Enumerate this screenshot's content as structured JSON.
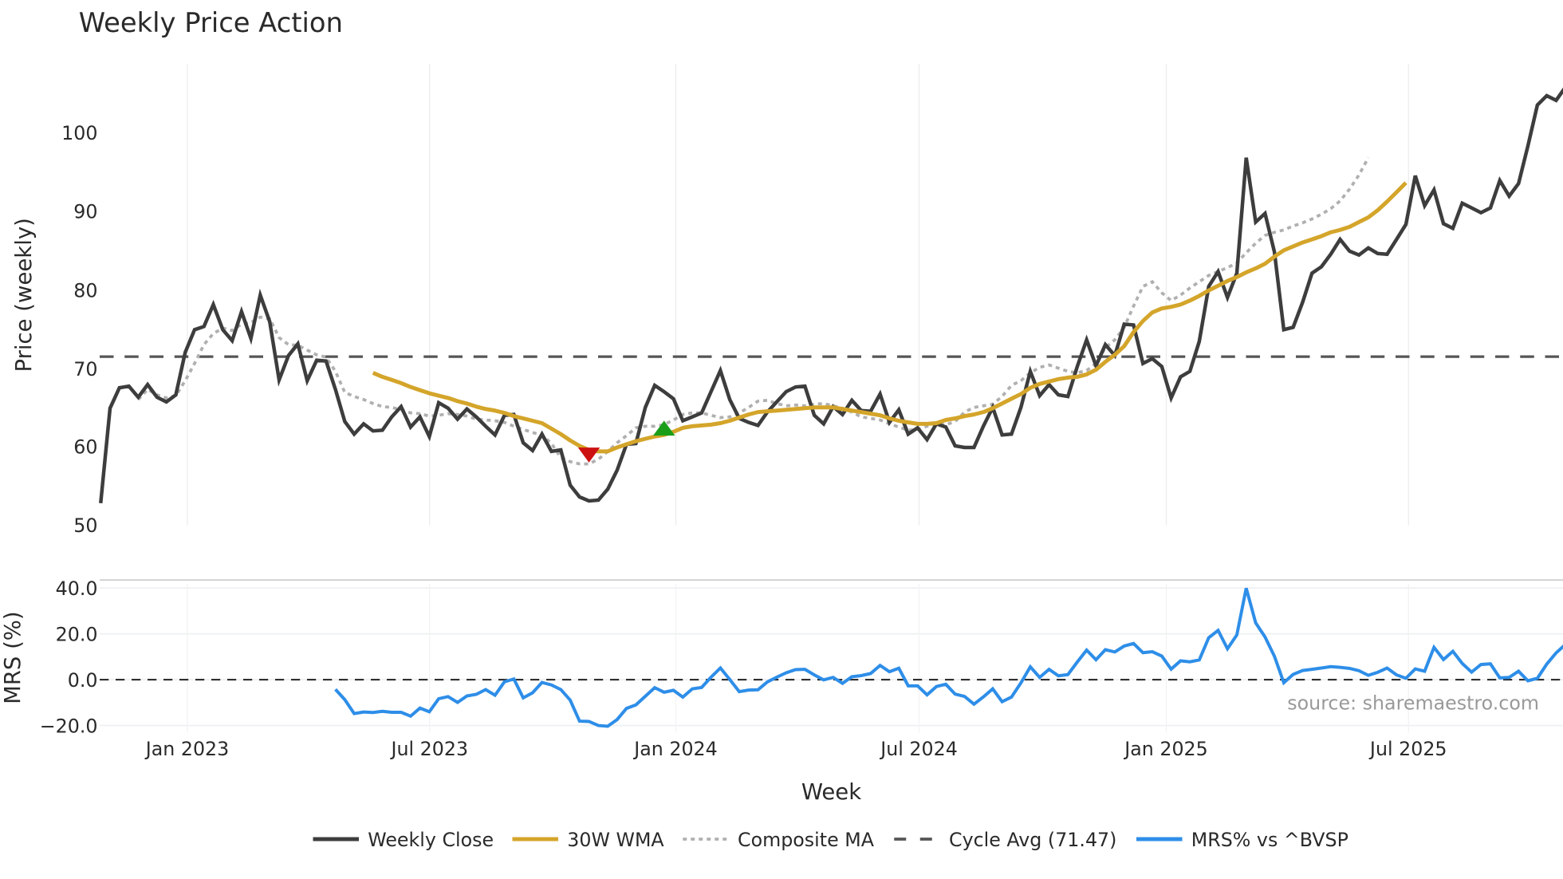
{
  "chart_data": [
    {
      "type": "line",
      "title": "Weekly Price Action",
      "xlabel": "Week",
      "ylabel": "Price (weekly)",
      "ylim": [
        50,
        108
      ],
      "yticks": [
        50,
        60,
        70,
        80,
        90,
        100
      ],
      "xticks": [
        "Jan 2023",
        "Jul 2023",
        "Jan 2024",
        "Jul 2024",
        "Jan 2025",
        "Jul 2025"
      ],
      "grid": true,
      "legend_position": "bottom",
      "x_start": "Nov 2022",
      "x_end": "Nov 2025",
      "series": [
        {
          "name": "Weekly Close",
          "color": "#3d3d3d",
          "style": "solid",
          "values": [
            52.8,
            64.9,
            67.5,
            67.7,
            66.3,
            67.9,
            66.3,
            65.7,
            66.6,
            72.0,
            74.9,
            75.3,
            78.1,
            74.9,
            73.5,
            77.2,
            73.8,
            79.3,
            75.9,
            68.5,
            71.6,
            73.1,
            68.4,
            71.0,
            70.9,
            67.3,
            63.2,
            61.6,
            62.9,
            62.0,
            62.1,
            63.8,
            65.1,
            62.5,
            63.8,
            61.3,
            65.6,
            64.9,
            63.5,
            64.8,
            63.8,
            62.6,
            61.5,
            64.0,
            64.1,
            60.5,
            59.5,
            61.6,
            59.4,
            59.6,
            55.1,
            53.6,
            53.1,
            53.2,
            54.6,
            57.0,
            60.3,
            60.4,
            65.0,
            67.8,
            67.0,
            66.1,
            63.3,
            63.8,
            64.3,
            67.0,
            69.7,
            66.0,
            63.6,
            63.1,
            62.7,
            64.4,
            65.7,
            67.0,
            67.6,
            67.7,
            64.0,
            62.9,
            65.1,
            64.1,
            65.9,
            64.6,
            64.5,
            66.7,
            63.1,
            64.7,
            61.6,
            62.4,
            60.9,
            62.9,
            62.5,
            60.1,
            59.9,
            59.9,
            62.6,
            65.0,
            61.5,
            61.6,
            65.0,
            69.6,
            66.5,
            67.9,
            66.6,
            66.4,
            70.2,
            73.6,
            70.3,
            73.0,
            71.6,
            75.6,
            75.5,
            70.6,
            71.2,
            70.2,
            66.2,
            68.9,
            69.6,
            73.4,
            80.4,
            82.3,
            79.0,
            82.1,
            96.8,
            88.6,
            89.7,
            84.8,
            74.9,
            75.2,
            78.4,
            82.1,
            82.9,
            84.5,
            86.4,
            84.9,
            84.4,
            85.3,
            84.6,
            84.5,
            86.4,
            88.3,
            94.5,
            90.7,
            92.7,
            88.4,
            87.8,
            91.0,
            90.4,
            89.8,
            90.4,
            93.9,
            91.9,
            93.5,
            98.3,
            103.5,
            104.7,
            104.1,
            105.8
          ]
        },
        {
          "name": "30W WMA",
          "color": "#d4a52a",
          "style": "solid",
          "start_index": 29,
          "values": [
            69.4,
            68.9,
            68.5,
            68.1,
            67.6,
            67.2,
            66.8,
            66.5,
            66.2,
            65.8,
            65.5,
            65.1,
            64.8,
            64.6,
            64.3,
            63.9,
            63.6,
            63.3,
            63.0,
            62.3,
            61.6,
            60.8,
            60.1,
            59.6,
            59.4,
            59.4,
            59.9,
            60.3,
            60.7,
            61.0,
            61.3,
            61.5,
            61.9,
            62.4,
            62.6,
            62.7,
            62.8,
            63.0,
            63.3,
            63.7,
            64.1,
            64.4,
            64.5,
            64.6,
            64.7,
            64.8,
            64.9,
            65.0,
            65.0,
            65.0,
            64.8,
            64.6,
            64.4,
            64.2,
            64.0,
            63.6,
            63.3,
            63.1,
            62.9,
            62.9,
            63.0,
            63.4,
            63.6,
            63.9,
            64.1,
            64.4,
            64.9,
            65.5,
            66.1,
            66.7,
            67.5,
            68.0,
            68.3,
            68.6,
            68.8,
            68.9,
            69.2,
            69.8,
            70.8,
            71.7,
            72.8,
            74.6,
            76.0,
            77.1,
            77.6,
            77.8,
            78.1,
            78.6,
            79.2,
            79.9,
            80.5,
            81.1,
            81.6,
            82.2,
            82.7,
            83.3,
            84.2,
            85.0,
            85.5,
            86.0,
            86.4,
            86.8,
            87.3,
            87.6,
            88.0,
            88.6,
            89.2,
            90.1,
            91.2,
            92.4,
            93.6
          ]
        },
        {
          "name": "Composite MA",
          "color": "#b0b0b0",
          "style": "dotted",
          "start_index": 4,
          "values": [
            66.0,
            67.3,
            66.6,
            66.2,
            66.5,
            68.4,
            70.6,
            73.0,
            74.4,
            75.1,
            74.8,
            75.6,
            75.8,
            76.5,
            76.3,
            73.9,
            73.0,
            72.9,
            72.3,
            71.7,
            71.4,
            69.6,
            66.9,
            66.4,
            66.0,
            65.5,
            65.1,
            65.0,
            64.7,
            64.3,
            64.2,
            63.9,
            64.0,
            64.2,
            64.1,
            63.9,
            63.5,
            63.4,
            63.3,
            63.1,
            62.6,
            62.2,
            61.8,
            61.5,
            60.4,
            58.6,
            58.1,
            57.8,
            57.8,
            58.4,
            59.4,
            60.5,
            61.4,
            62.4,
            62.6,
            62.6,
            62.8,
            63.4,
            64.1,
            64.3,
            64.3,
            64.0,
            63.7,
            63.8,
            64.3,
            65.0,
            65.8,
            65.9,
            65.5,
            65.2,
            65.3,
            65.2,
            65.4,
            65.5,
            65.2,
            64.9,
            64.4,
            63.8,
            63.6,
            63.4,
            62.9,
            62.5,
            62.1,
            62.2,
            62.6,
            62.9,
            62.8,
            63.2,
            64.4,
            65.0,
            65.2,
            65.4,
            66.4,
            67.8,
            68.4,
            69.4,
            70.1,
            70.4,
            70.0,
            69.6,
            69.4,
            69.7,
            70.6,
            72.6,
            73.6,
            75.2,
            77.9,
            80.4,
            81.0,
            79.6,
            78.6,
            79.3,
            80.2,
            81.0,
            81.8,
            82.3,
            82.8,
            83.4,
            84.7,
            85.9,
            86.9,
            87.3,
            87.6,
            88.1,
            88.5,
            89.0,
            89.6,
            90.3,
            91.3,
            92.8,
            94.6,
            96.8
          ]
        },
        {
          "name": "Cycle Avg (71.47)",
          "color": "#555555",
          "style": "dashed",
          "value": 71.47
        }
      ],
      "markers": [
        {
          "type": "sell",
          "shape": "triangle-down",
          "color": "#cc1111",
          "x_index": 52,
          "y": 59.0
        },
        {
          "type": "buy",
          "shape": "triangle-up",
          "color": "#1a9e1a",
          "x_index": 60,
          "y": 62.3
        }
      ]
    },
    {
      "type": "line",
      "title": "",
      "xlabel": "Week",
      "ylabel": "MRS (%)",
      "ylim": [
        -22,
        43
      ],
      "yticks": [
        -20.0,
        0.0,
        20.0,
        40.0
      ],
      "ytick_labels": [
        "−20.0",
        "0.0",
        "20.0",
        "40.0"
      ],
      "xticks": [
        "Jan 2023",
        "Jul 2023",
        "Jan 2024",
        "Jul 2024",
        "Jan 2025",
        "Jul 2025"
      ],
      "zero_line": {
        "style": "dashed",
        "color": "#222222"
      },
      "series": [
        {
          "name": "MRS% vs ^BVSP",
          "color": "#2e8ee8",
          "start_index": 25,
          "values": [
            -4.2,
            -8.7,
            -14.8,
            -14.1,
            -14.3,
            -13.8,
            -14.2,
            -14.2,
            -15.9,
            -12.4,
            -14.0,
            -8.3,
            -7.4,
            -9.9,
            -7.1,
            -6.4,
            -4.3,
            -6.8,
            -0.9,
            0.3,
            -7.9,
            -5.7,
            -1.2,
            -2.3,
            -4.3,
            -8.9,
            -18.1,
            -18.2,
            -20.0,
            -20.3,
            -17.4,
            -12.5,
            -11.0,
            -7.2,
            -3.5,
            -5.5,
            -4.6,
            -7.6,
            -4.0,
            -3.4,
            1.1,
            5.1,
            0.1,
            -5.2,
            -4.5,
            -4.4,
            -1.0,
            1.1,
            3.0,
            4.4,
            4.5,
            2.1,
            -0.1,
            1.0,
            -1.6,
            1.3,
            1.8,
            2.7,
            6.2,
            3.5,
            5.0,
            -2.7,
            -2.7,
            -6.6,
            -3.0,
            -2.0,
            -6.3,
            -7.3,
            -10.7,
            -7.5,
            -4.0,
            -9.6,
            -7.6,
            -1.4,
            5.6,
            1.0,
            4.5,
            1.7,
            2.2,
            7.7,
            12.9,
            8.7,
            13.1,
            12.1,
            14.7,
            15.8,
            11.8,
            12.2,
            10.3,
            4.6,
            8.2,
            7.8,
            8.6,
            18.3,
            21.5,
            13.5,
            19.5,
            39.9,
            24.8,
            18.6,
            10.2,
            -1.3,
            2.3,
            4.0,
            4.5,
            5.1,
            5.7,
            5.4,
            4.9,
            3.9,
            1.9,
            3.2,
            5.1,
            2.1,
            0.6,
            4.7,
            3.7,
            14.1,
            8.8,
            12.4,
            7.1,
            3.3,
            6.6,
            6.9,
            0.8,
            1.0,
            3.7,
            -0.5,
            0.6,
            6.8,
            11.7,
            15.4,
            11.6,
            11.1
          ]
        }
      ]
    }
  ],
  "header": {
    "title": "Weekly Price Action"
  },
  "price_axis": {
    "label": "Price (weekly)",
    "ticks": [
      "100",
      "90",
      "80",
      "70",
      "60",
      "50"
    ]
  },
  "mrs_axis": {
    "label": "MRS (%)",
    "ticks": [
      "40.0",
      "20.0",
      "0.0",
      "−20.0"
    ]
  },
  "x_axis": {
    "label": "Week",
    "ticks": [
      "Jan 2023",
      "Jul 2023",
      "Jan 2024",
      "Jul 2024",
      "Jan 2025",
      "Jul 2025"
    ]
  },
  "source": "source: sharemaestro.com",
  "legend": {
    "items": [
      {
        "label": "Weekly Close",
        "color": "#3d3d3d",
        "style": "solid"
      },
      {
        "label": "30W WMA",
        "color": "#d4a52a",
        "style": "solid"
      },
      {
        "label": "Composite MA",
        "color": "#b0b0b0",
        "style": "dotted"
      },
      {
        "label": "Cycle Avg (71.47)",
        "color": "#555555",
        "style": "dashed"
      },
      {
        "label": "MRS% vs ^BVSP",
        "color": "#2e8ee8",
        "style": "solid"
      }
    ]
  }
}
